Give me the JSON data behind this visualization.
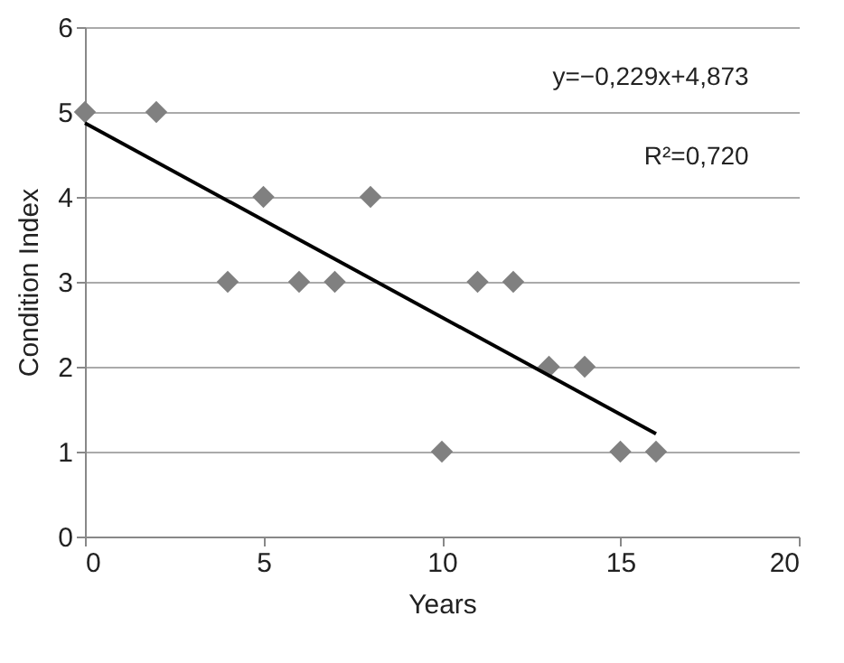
{
  "chart_data": {
    "type": "scatter",
    "xlabel": "Years",
    "ylabel": "Condition Index",
    "xlim": [
      0,
      20
    ],
    "xticks": [
      0,
      5,
      10,
      15,
      20
    ],
    "ylim": [
      0,
      6
    ],
    "yticks": [
      0,
      1,
      2,
      3,
      4,
      5,
      6
    ],
    "grid": "y",
    "series": [
      {
        "type": "scatter",
        "marker": "diamond",
        "color": "#808080",
        "x": [
          0,
          2,
          4,
          5,
          6,
          7,
          8,
          10,
          11,
          12,
          13,
          14,
          15,
          16
        ],
        "values": [
          5,
          5,
          3,
          4,
          3,
          3,
          4,
          1,
          3,
          3,
          2,
          2,
          1,
          1
        ]
      },
      {
        "type": "line",
        "color": "#000000",
        "line_style": "solid",
        "x": [
          0,
          16
        ],
        "values": [
          4.87,
          1.21
        ]
      }
    ],
    "annotations": [
      "y=−0,229x+4,873",
      "R²=0,720"
    ]
  }
}
